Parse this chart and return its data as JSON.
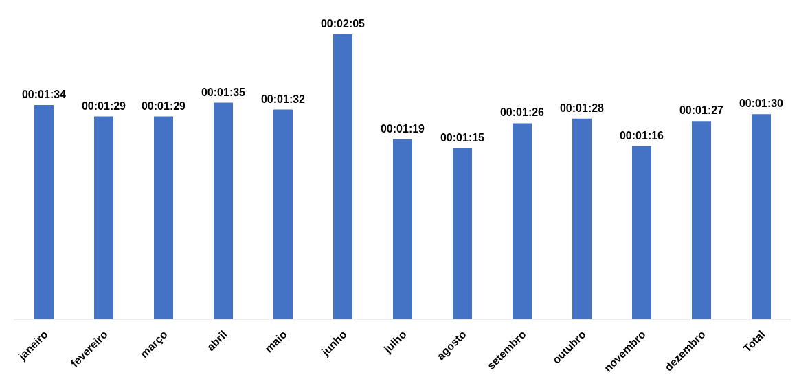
{
  "chart_data": {
    "type": "bar",
    "categories": [
      "janeiro",
      "fevereiro",
      "março",
      "abril",
      "maio",
      "junho",
      "julho",
      "agosto",
      "setembro",
      "outubro",
      "novembro",
      "dezembro",
      "Total"
    ],
    "values": [
      94,
      89,
      89,
      95,
      92,
      125,
      79,
      75,
      86,
      88,
      76,
      87,
      90
    ],
    "value_labels": [
      "00:01:34",
      "00:01:29",
      "00:01:29",
      "00:01:35",
      "00:01:32",
      "00:02:05",
      "00:01:19",
      "00:01:15",
      "00:01:26",
      "00:01:28",
      "00:01:16",
      "00:01:27",
      "00:01:30"
    ],
    "color": "#4472c4",
    "grid": false,
    "legend": false
  }
}
